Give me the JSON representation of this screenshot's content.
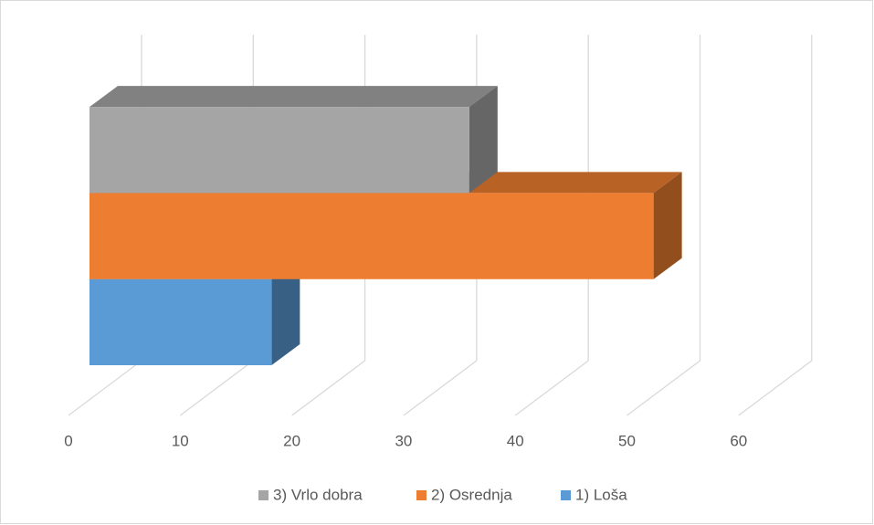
{
  "chart_data": {
    "type": "bar3d",
    "orientation": "horizontal",
    "categories": [
      null
    ],
    "series": [
      {
        "name": "3) Vrlo dobra",
        "color": "#a5a5a5",
        "values": [
          34
        ]
      },
      {
        "name": "2) Osrednja",
        "color": "#ed7d31",
        "values": [
          50.5
        ]
      },
      {
        "name": "1) Loša",
        "color": "#5b9bd5",
        "values": [
          16.3
        ]
      }
    ],
    "xlim": [
      0,
      60
    ],
    "xticks": [
      0,
      10,
      20,
      30,
      40,
      50,
      60
    ],
    "grid": true,
    "legend": "bottom"
  }
}
